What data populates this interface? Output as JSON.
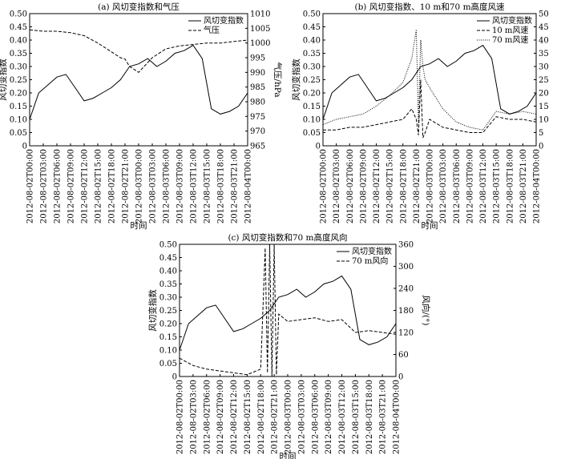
{
  "figure": {
    "background": "#ffffff",
    "line_color": "#000000"
  },
  "chart_data": [
    {
      "type": "line",
      "title": "(a) 风切变指数和气压",
      "xlabel": "时间",
      "ylabel": "风切变指数",
      "ylabel_right": "气压/hPa",
      "ylim": [
        0,
        0.5
      ],
      "yticks": [
        "0",
        "0.05",
        "0.10",
        "0.15",
        "0.20",
        "0.25",
        "0.30",
        "0.35",
        "0.40",
        "0.45",
        "0.50"
      ],
      "ylim_right": [
        965,
        1010
      ],
      "yticks_right": [
        "965",
        "970",
        "975",
        "980",
        "985",
        "990",
        "995",
        "1000",
        "1005",
        "1010"
      ],
      "xticks": [
        "2012-08-02T00:00",
        "2012-08-02T03:00",
        "2012-08-02T06:00",
        "2012-08-02T09:00",
        "2012-08-02T12:00",
        "2012-08-02T15:00",
        "2012-08-02T18:00",
        "2012-08-02T21:00",
        "2012-08-03T00:00",
        "2012-08-03T03:00",
        "2012-08-03T06:00",
        "2012-08-03T09:00",
        "2012-08-03T12:00",
        "2012-08-03T15:00",
        "2012-08-03T18:00",
        "2012-08-03T21:00",
        "2012-08-04T00:00"
      ],
      "legend_position": "top-right",
      "series": [
        {
          "name": "风切变指数",
          "axis": "left",
          "style": "solid",
          "x": [
            0,
            2,
            4,
            6,
            8,
            10,
            12,
            14,
            16,
            18,
            20,
            22,
            24,
            26,
            28,
            30,
            32,
            34,
            36,
            38,
            40,
            42,
            44,
            46,
            48
          ],
          "y": [
            0.1,
            0.2,
            0.23,
            0.26,
            0.27,
            0.22,
            0.17,
            0.18,
            0.2,
            0.22,
            0.25,
            0.3,
            0.31,
            0.33,
            0.3,
            0.32,
            0.35,
            0.36,
            0.38,
            0.33,
            0.14,
            0.12,
            0.13,
            0.15,
            0.2
          ]
        },
        {
          "name": "气压",
          "axis": "right",
          "style": "dashed",
          "x": [
            0,
            3,
            6,
            9,
            12,
            15,
            18,
            20,
            21,
            22,
            24,
            27,
            30,
            33,
            36,
            39,
            42,
            45,
            48
          ],
          "y": [
            1004.5,
            1004,
            1004,
            1003.5,
            1002.5,
            1000,
            997,
            995,
            994.5,
            992,
            990,
            995,
            998,
            999,
            999.5,
            1000,
            1000,
            1000.5,
            1001
          ]
        }
      ]
    },
    {
      "type": "line",
      "title": "(b) 风切变指数、10 m和70 m高度风速",
      "xlabel": "时间",
      "ylabel": "风切变指数",
      "ylabel_right": "风速/(m·s⁻¹)",
      "ylim": [
        0,
        0.5
      ],
      "yticks": [
        "0",
        "0.05",
        "0.10",
        "0.15",
        "0.20",
        "0.25",
        "0.30",
        "0.35",
        "0.40",
        "0.45",
        "0.50"
      ],
      "ylim_right": [
        0,
        50
      ],
      "yticks_right": [
        "0",
        "5",
        "10",
        "15",
        "20",
        "25",
        "30",
        "35",
        "40",
        "45",
        "50"
      ],
      "xticks": [
        "2012-08-02T00:00",
        "2012-08-02T03:00",
        "2012-08-02T06:00",
        "2012-08-02T09:00",
        "2012-08-02T12:00",
        "2012-08-02T15:00",
        "2012-08-02T18:00",
        "2012-08-02T21:00",
        "2012-08-03T00:00",
        "2012-08-03T03:00",
        "2012-08-03T06:00",
        "2012-08-03T09:00",
        "2012-08-03T12:00",
        "2012-08-03T15:00",
        "2012-08-03T18:00",
        "2012-08-03T21:00",
        "2012-08-04T00:00"
      ],
      "legend_position": "top-right",
      "series": [
        {
          "name": "风切变指数",
          "axis": "left",
          "style": "solid",
          "x": [
            0,
            2,
            4,
            6,
            8,
            10,
            12,
            14,
            16,
            18,
            20,
            22,
            24,
            26,
            28,
            30,
            32,
            34,
            36,
            38,
            40,
            42,
            44,
            46,
            48
          ],
          "y": [
            0.1,
            0.2,
            0.23,
            0.26,
            0.27,
            0.22,
            0.17,
            0.18,
            0.2,
            0.22,
            0.25,
            0.3,
            0.31,
            0.33,
            0.3,
            0.32,
            0.35,
            0.36,
            0.38,
            0.33,
            0.14,
            0.12,
            0.13,
            0.15,
            0.2
          ]
        },
        {
          "name": "10 m风速",
          "axis": "right",
          "style": "dashed",
          "x": [
            0,
            3,
            6,
            9,
            12,
            15,
            18,
            20,
            21,
            21.5,
            22,
            22.5,
            23,
            24,
            27,
            30,
            33,
            36,
            39,
            42,
            45,
            48
          ],
          "y": [
            6,
            6,
            7,
            7,
            8,
            9,
            10,
            14,
            10,
            4,
            25,
            3,
            5,
            10,
            7,
            6,
            5,
            5,
            11,
            10,
            10,
            9
          ]
        },
        {
          "name": "70 m风速",
          "axis": "right",
          "style": "dotted",
          "x": [
            0,
            3,
            6,
            9,
            12,
            15,
            18,
            20,
            21,
            21.5,
            22,
            22.5,
            23,
            24,
            27,
            30,
            33,
            36,
            39,
            42,
            45,
            48
          ],
          "y": [
            8,
            10,
            11,
            12,
            15,
            19,
            24,
            33,
            44,
            8,
            40,
            30,
            25,
            22,
            14,
            9,
            7,
            6,
            13,
            12,
            13,
            12
          ]
        }
      ]
    },
    {
      "type": "line",
      "title": "(c) 风切变指数和70 m高度风向",
      "xlabel": "时间",
      "ylabel": "风切变指数",
      "ylabel_right": "风向/(°)",
      "ylim": [
        0,
        0.5
      ],
      "yticks": [
        "0",
        "0.05",
        "0.10",
        "0.15",
        "0.20",
        "0.25",
        "0.30",
        "0.35",
        "0.40",
        "0.45",
        "0.50"
      ],
      "ylim_right": [
        0,
        360
      ],
      "yticks_right": [
        "0",
        "60",
        "120",
        "180",
        "240",
        "300",
        "360"
      ],
      "xticks": [
        "2012-08-02T00:00",
        "2012-08-02T03:00",
        "2012-08-02T06:00",
        "2012-08-02T09:00",
        "2012-08-02T12:00",
        "2012-08-02T15:00",
        "2012-08-02T18:00",
        "2012-08-02T21:00",
        "2012-08-03T00:00",
        "2012-08-03T03:00",
        "2012-08-03T06:00",
        "2012-08-03T09:00",
        "2012-08-03T12:00",
        "2012-08-03T15:00",
        "2012-08-03T18:00",
        "2012-08-03T21:00",
        "2012-08-04T00:00"
      ],
      "legend_position": "top-right",
      "series": [
        {
          "name": "风切变指数",
          "axis": "left",
          "style": "solid",
          "x": [
            0,
            2,
            4,
            6,
            8,
            10,
            12,
            14,
            16,
            18,
            20,
            22,
            24,
            26,
            28,
            30,
            32,
            34,
            36,
            38,
            40,
            42,
            44,
            46,
            48
          ],
          "y": [
            0.1,
            0.2,
            0.23,
            0.26,
            0.27,
            0.22,
            0.17,
            0.18,
            0.2,
            0.22,
            0.25,
            0.3,
            0.31,
            0.33,
            0.3,
            0.32,
            0.35,
            0.36,
            0.38,
            0.33,
            0.14,
            0.12,
            0.13,
            0.15,
            0.2
          ]
        },
        {
          "name": "70 m风向",
          "axis": "right",
          "style": "dashed",
          "x": [
            0,
            3,
            6,
            9,
            12,
            15,
            18,
            19,
            19.5,
            20,
            20.5,
            21,
            21.5,
            22,
            23,
            24,
            27,
            30,
            33,
            36,
            39,
            42,
            45,
            48
          ],
          "y": [
            50,
            30,
            20,
            15,
            10,
            5,
            20,
            350,
            10,
            360,
            0,
            360,
            5,
            170,
            160,
            150,
            155,
            160,
            150,
            155,
            120,
            125,
            120,
            115
          ]
        }
      ]
    }
  ]
}
